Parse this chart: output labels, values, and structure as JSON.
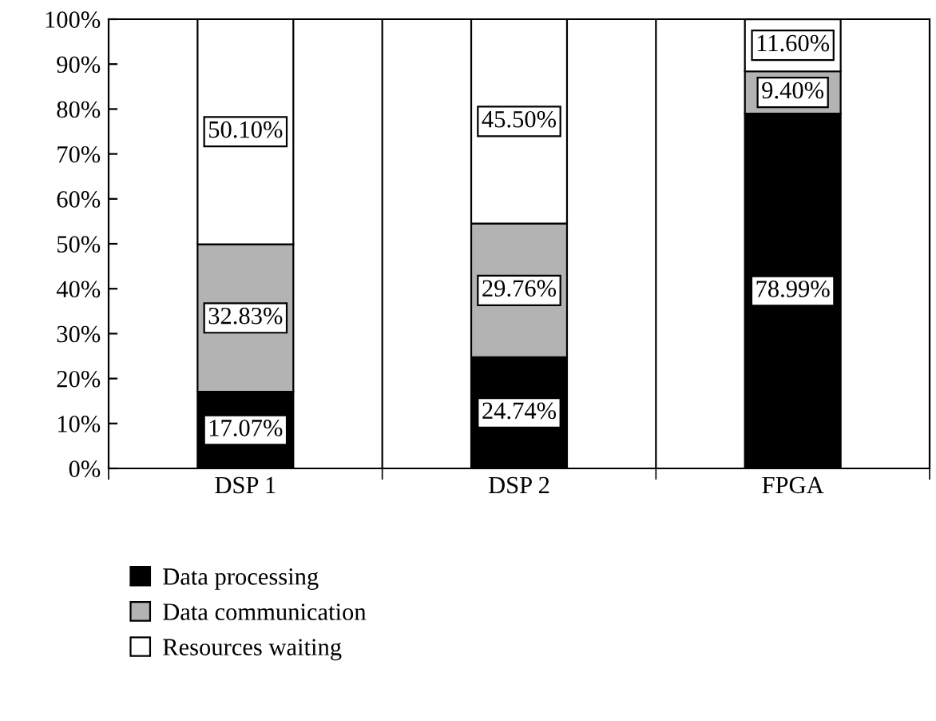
{
  "chart_data": {
    "type": "bar",
    "stacked": true,
    "categories": [
      "DSP 1",
      "DSP 2",
      "FPGA"
    ],
    "series": [
      {
        "name": "Data processing",
        "color": "#000000",
        "values": [
          17.07,
          24.74,
          78.99
        ],
        "value_labels": [
          "17.07%",
          "24.74%",
          "78.99%"
        ]
      },
      {
        "name": "Data communication",
        "color": "#b3b3b3",
        "values": [
          32.83,
          29.76,
          9.4
        ],
        "value_labels": [
          "32.83%",
          "29.76%",
          "9.40%"
        ]
      },
      {
        "name": "Resources waiting",
        "color": "#ffffff",
        "values": [
          50.1,
          45.5,
          11.6
        ],
        "value_labels": [
          "50.10%",
          "45.50%",
          "11.60%"
        ]
      }
    ],
    "ylim": [
      0,
      100
    ],
    "yticks": [
      {
        "value": 0,
        "label": "0%"
      },
      {
        "value": 10,
        "label": "10%"
      },
      {
        "value": 20,
        "label": "20%"
      },
      {
        "value": 30,
        "label": "30%"
      },
      {
        "value": 40,
        "label": "40%"
      },
      {
        "value": 50,
        "label": "50%"
      },
      {
        "value": 60,
        "label": "60%"
      },
      {
        "value": 70,
        "label": "70%"
      },
      {
        "value": 80,
        "label": "80%"
      },
      {
        "value": 90,
        "label": "90%"
      },
      {
        "value": 100,
        "label": "100%"
      }
    ],
    "grid": "x",
    "legend": "bottom left"
  }
}
